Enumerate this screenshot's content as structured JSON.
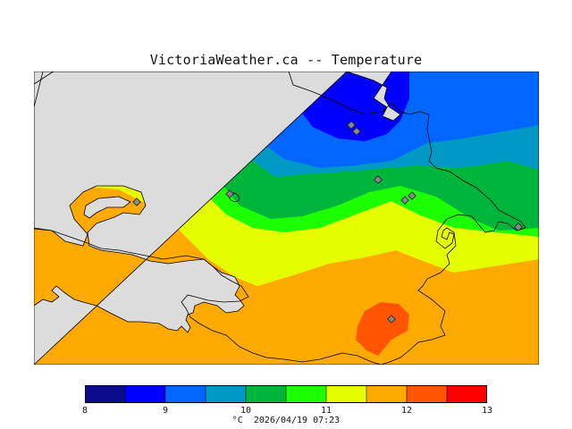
{
  "title": "VictoriaWeather.ca -- Temperature",
  "footer": {
    "unit": "°C",
    "timestamp": "2026/04/19 07:23"
  },
  "legend": {
    "ticks": [
      "8",
      "9",
      "10",
      "11",
      "12",
      "13"
    ],
    "min": 8,
    "max": 13,
    "colors": [
      "#0b0b8e",
      "#0000ff",
      "#0066ff",
      "#0099c6",
      "#00b53c",
      "#1cff00",
      "#e6ff00",
      "#ffaa00",
      "#ff5500",
      "#ff0000"
    ]
  },
  "map": {
    "ocean_color": "#dcdcdc",
    "land_outline_color": "#000000",
    "zone_colors": {
      "t8_5_9": "#0000ff",
      "t9_9_5": "#0066ff",
      "t9_5_10": "#0099c6",
      "t10_10_5": "#00b53c",
      "t10_5_11": "#1cff00",
      "t11_11_5": "#e6ff00",
      "t11_5_12": "#ffaa00",
      "t12_12_5": "#ff5500"
    }
  }
}
